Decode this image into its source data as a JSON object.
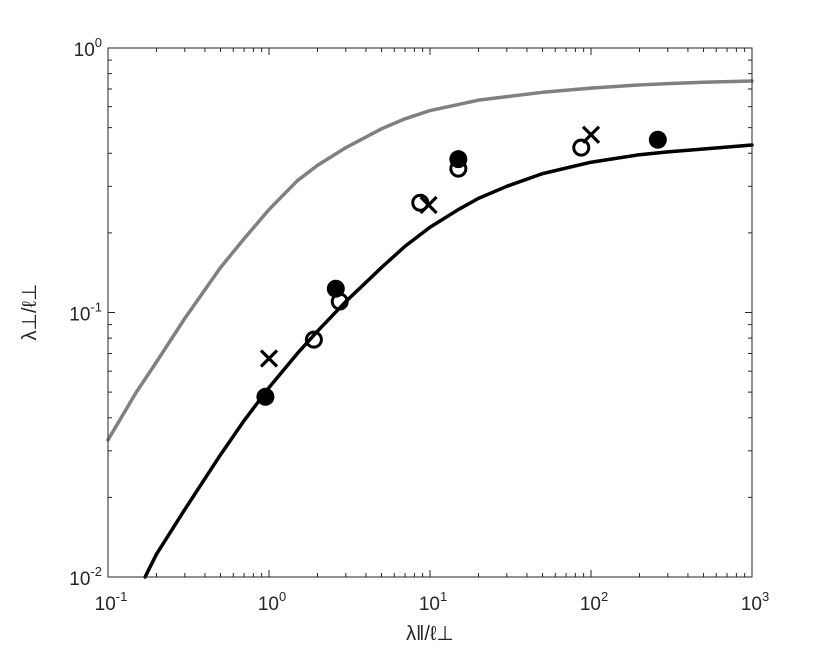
{
  "chart_data": {
    "type": "scatter",
    "title": "",
    "xlabel": "λ‖/ℓ⊥",
    "ylabel": "λ⊥/ℓ⊥",
    "x_scale": "log",
    "y_scale": "log",
    "xlim": [
      0.1,
      1000
    ],
    "ylim": [
      0.01,
      1
    ],
    "x_ticks": [
      {
        "value": 0.1,
        "base": "10",
        "exp": "-1"
      },
      {
        "value": 1,
        "base": "10",
        "exp": "0"
      },
      {
        "value": 10,
        "base": "10",
        "exp": "1"
      },
      {
        "value": 100,
        "base": "10",
        "exp": "2"
      },
      {
        "value": 1000,
        "base": "10",
        "exp": "3"
      }
    ],
    "y_ticks": [
      {
        "value": 0.01,
        "base": "10",
        "exp": "-2"
      },
      {
        "value": 0.1,
        "base": "10",
        "exp": "-1"
      },
      {
        "value": 1,
        "base": "10",
        "exp": "0"
      }
    ],
    "grid": false,
    "legend": "none",
    "curves": [
      {
        "color": "#808080",
        "x": [
          0.1,
          0.15,
          0.2,
          0.3,
          0.5,
          0.7,
          1,
          1.5,
          2,
          3,
          5,
          7,
          10,
          20,
          30,
          50,
          100,
          200,
          300,
          500,
          1000
        ],
        "y": [
          0.033,
          0.05,
          0.065,
          0.095,
          0.148,
          0.19,
          0.245,
          0.315,
          0.36,
          0.42,
          0.495,
          0.54,
          0.58,
          0.635,
          0.655,
          0.68,
          0.705,
          0.725,
          0.733,
          0.742,
          0.75
        ]
      },
      {
        "color": "#000000",
        "x": [
          0.17,
          0.2,
          0.3,
          0.5,
          0.7,
          1,
          1.5,
          2,
          3,
          5,
          7,
          10,
          15,
          20,
          30,
          50,
          100,
          200,
          300,
          500,
          1000
        ],
        "y": [
          0.01,
          0.0122,
          0.018,
          0.029,
          0.039,
          0.052,
          0.07,
          0.085,
          0.11,
          0.148,
          0.178,
          0.21,
          0.245,
          0.27,
          0.3,
          0.335,
          0.37,
          0.395,
          0.405,
          0.415,
          0.43
        ]
      }
    ],
    "series": [
      {
        "marker": "filled-circle",
        "color": "#000000",
        "x": [
          0.95,
          2.6,
          15,
          260
        ],
        "y": [
          0.048,
          0.123,
          0.38,
          0.45
        ]
      },
      {
        "marker": "open-circle",
        "color": "#000000",
        "x": [
          1.9,
          2.75,
          8.7,
          15,
          87
        ],
        "y": [
          0.079,
          0.11,
          0.26,
          0.35,
          0.42
        ]
      },
      {
        "marker": "cross",
        "color": "#000000",
        "x": [
          1.0,
          9.8,
          100
        ],
        "y": [
          0.067,
          0.255,
          0.47
        ]
      }
    ]
  }
}
